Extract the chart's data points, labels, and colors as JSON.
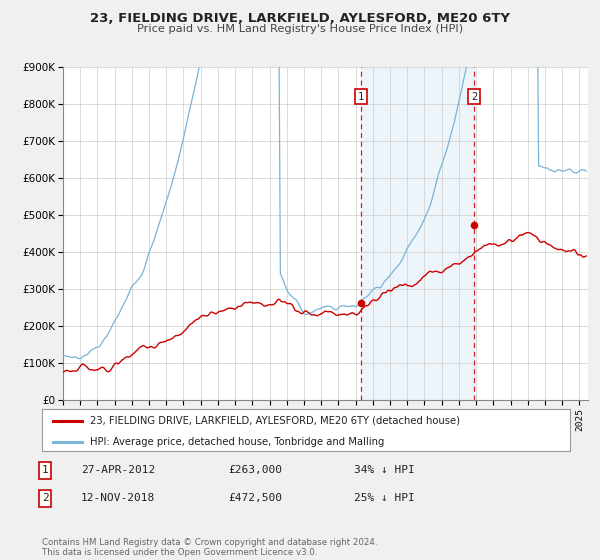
{
  "title1": "23, FIELDING DRIVE, LARKFIELD, AYLESFORD, ME20 6TY",
  "title2": "Price paid vs. HM Land Registry's House Price Index (HPI)",
  "ylim": [
    0,
    900000
  ],
  "yticks": [
    0,
    100000,
    200000,
    300000,
    400000,
    500000,
    600000,
    700000,
    800000,
    900000
  ],
  "ytick_labels": [
    "£0",
    "£100K",
    "£200K",
    "£300K",
    "£400K",
    "£500K",
    "£600K",
    "£700K",
    "£800K",
    "£900K"
  ],
  "hpi_color": "#7ab4d8",
  "price_color": "#cc0000",
  "vline_color": "#cc0000",
  "marker_color": "#cc0000",
  "transaction1_date": 2012.32,
  "transaction1_price": 263000,
  "transaction2_date": 2018.87,
  "transaction2_price": 472500,
  "legend_line1": "23, FIELDING DRIVE, LARKFIELD, AYLESFORD, ME20 6TY (detached house)",
  "legend_line2": "HPI: Average price, detached house, Tonbridge and Malling",
  "note1_date": "27-APR-2012",
  "note1_price": "£263,000",
  "note1_pct": "34% ↓ HPI",
  "note2_date": "12-NOV-2018",
  "note2_price": "£472,500",
  "note2_pct": "25% ↓ HPI",
  "footer": "Contains HM Land Registry data © Crown copyright and database right 2024.\nThis data is licensed under the Open Government Licence v3.0.",
  "fig_bg": "#f0f0f0",
  "plot_bg": "#ffffff",
  "xlim_start": 1995.0,
  "xlim_end": 2025.5
}
